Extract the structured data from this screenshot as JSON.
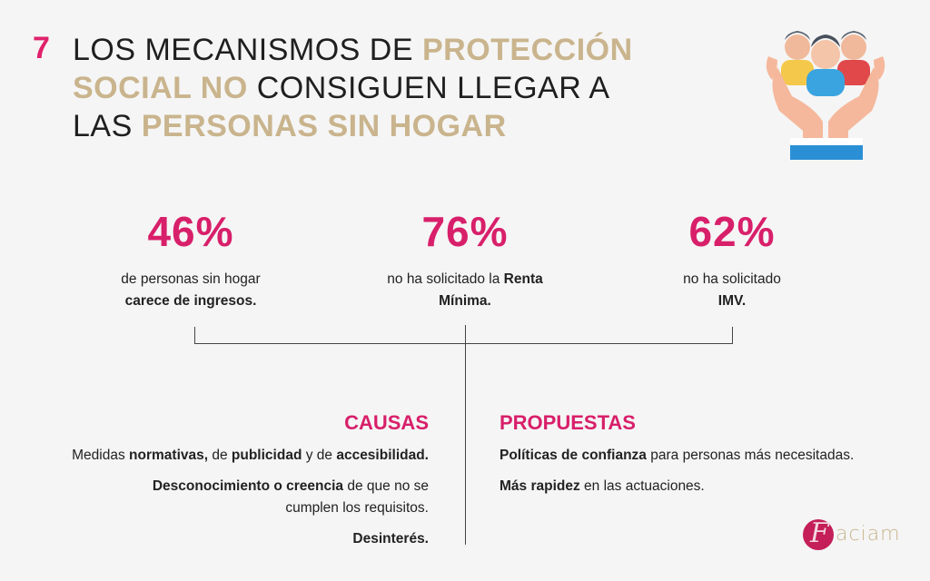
{
  "header": {
    "number": "7",
    "title_parts": {
      "p1": "LOS MECANISMOS DE ",
      "p2": "PROTECCIÓN SOCIAL NO",
      "p3": " CONSIGUEN LLEGAR A LAS ",
      "p4": "PERSONAS SIN HOGAR"
    }
  },
  "stats": [
    {
      "value": "46%",
      "text_a": "de personas sin hogar",
      "text_b": "carece de ingresos."
    },
    {
      "value": "76%",
      "text_a": "no ha solicitado la ",
      "text_bold": "Renta Mínima."
    },
    {
      "value": "62%",
      "text_a": "no ha solicitado",
      "text_b": "IMV."
    }
  ],
  "causas": {
    "title": "CAUSAS",
    "item1": {
      "a": "Medidas ",
      "b": "normativas,",
      "c": " de ",
      "d": "publicidad",
      "e": " y de ",
      "f": "accesibilidad."
    },
    "item2": {
      "b": "Desconocimiento o creencia",
      "a": " de que no se cumplen los requisitos."
    },
    "item3": "Desinterés."
  },
  "propuestas": {
    "title": "PROPUESTAS",
    "item1": {
      "b": "Políticas de confianza",
      "a": " para personas más necesitadas."
    },
    "item2": {
      "b": "Más rapidez",
      "a": " en las actuaciones."
    }
  },
  "logo": {
    "mark": "F",
    "text": "aciam"
  },
  "colors": {
    "accent": "#d81f6a",
    "gold": "#c9b48d",
    "background": "#f5f5f5"
  },
  "icons": {
    "hero": "people-in-hands-icon"
  }
}
